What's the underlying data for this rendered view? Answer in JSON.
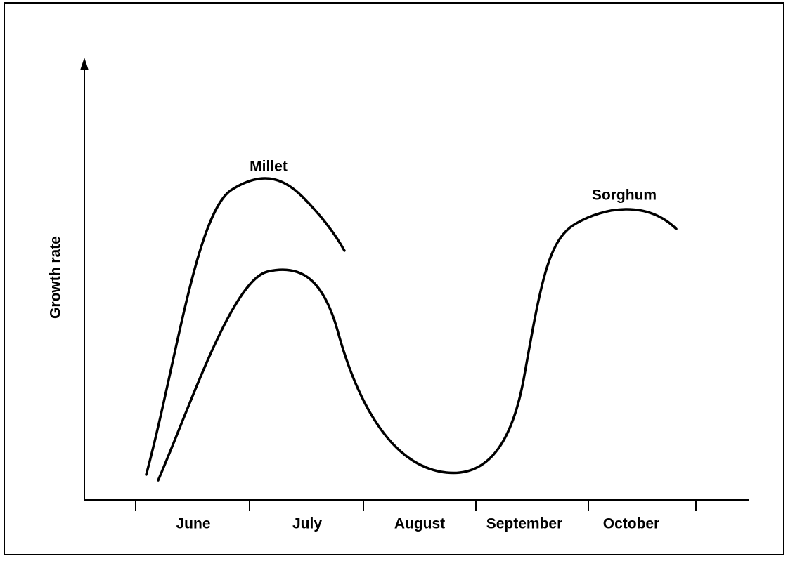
{
  "axes": {
    "y_label": "Growth rate",
    "x_labels": [
      "June",
      "July",
      "August",
      "September",
      "October"
    ]
  },
  "curves": [
    {
      "label": "Millet"
    },
    {
      "label": "Sorghum"
    }
  ]
}
